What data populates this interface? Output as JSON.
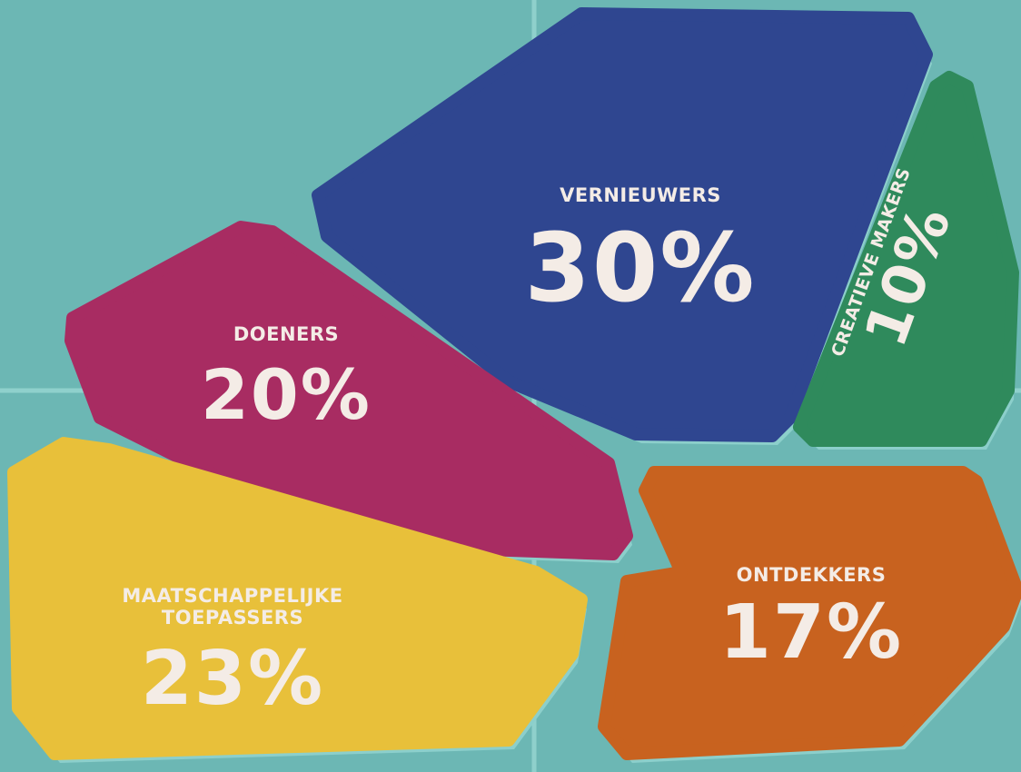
{
  "chart_data": {
    "type": "pie",
    "categories": [
      "VERNIEUWERS",
      "CREATIEVE MAKERS",
      "DOENERS",
      "MAATSCHAPPELIJKE TOEPASSERS",
      "ONTDEKKERS"
    ],
    "values": [
      30,
      10,
      20,
      23,
      17
    ],
    "value_labels": [
      "30%",
      "10%",
      "20%",
      "23%",
      "17%"
    ],
    "colors": [
      "#2f4690",
      "#2f8a5c",
      "#a82c62",
      "#e8c03a",
      "#c8621f"
    ]
  }
}
